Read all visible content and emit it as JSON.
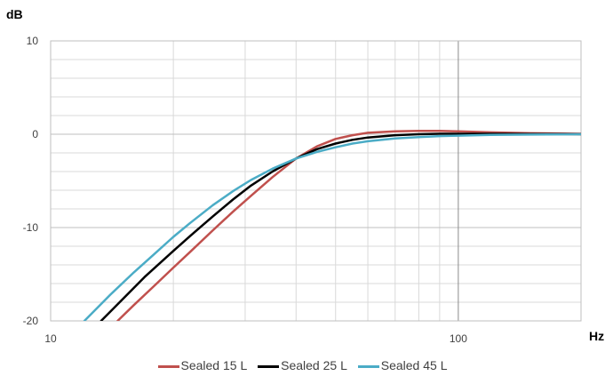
{
  "chart_data": {
    "type": "line",
    "title": "",
    "ylabel": "dB",
    "xlabel": "Hz",
    "xscale": "log",
    "xlim": [
      10,
      200
    ],
    "ylim": [
      -20,
      10
    ],
    "x_ticks": [
      {
        "value": 10,
        "label": "10"
      },
      {
        "value": 100,
        "label": "100"
      }
    ],
    "y_ticks": [
      {
        "value": 10,
        "label": "10"
      },
      {
        "value": 0,
        "label": "0"
      },
      {
        "value": -10,
        "label": "-10"
      },
      {
        "value": -20,
        "label": "-20"
      }
    ],
    "grid": true,
    "legend": "bottom",
    "series": [
      {
        "name": "Sealed 15 L",
        "color": "#c0504d",
        "x": [
          14.6,
          16,
          18,
          20,
          22,
          25,
          28,
          31,
          35,
          40,
          45,
          50,
          55,
          60,
          70,
          80,
          90,
          100,
          120,
          150,
          200
        ],
        "y": [
          -20,
          -18.3,
          -16.2,
          -14.3,
          -12.6,
          -10.3,
          -8.3,
          -6.6,
          -4.6,
          -2.6,
          -1.3,
          -0.5,
          -0.1,
          0.15,
          0.3,
          0.35,
          0.35,
          0.3,
          0.2,
          0.1,
          0.05
        ]
      },
      {
        "name": "Sealed 25 L",
        "color": "#000000",
        "x": [
          13.3,
          15,
          17,
          20,
          22,
          25,
          28,
          31,
          35,
          40,
          45,
          50,
          55,
          60,
          70,
          80,
          90,
          100,
          120,
          150,
          200
        ],
        "y": [
          -20,
          -17.7,
          -15.3,
          -12.5,
          -10.9,
          -8.8,
          -7.0,
          -5.5,
          -4.0,
          -2.6,
          -1.6,
          -1.0,
          -0.6,
          -0.35,
          -0.1,
          0.0,
          0.05,
          0.05,
          0.05,
          0.02,
          0.0
        ]
      },
      {
        "name": "Sealed 45 L",
        "color": "#4bacc6",
        "x": [
          12.1,
          14,
          16,
          18,
          20,
          22,
          25,
          28,
          31,
          35,
          40,
          45,
          50,
          55,
          60,
          70,
          80,
          90,
          100,
          120,
          150,
          200
        ],
        "y": [
          -20,
          -17.2,
          -14.8,
          -12.8,
          -11.0,
          -9.5,
          -7.6,
          -6.1,
          -4.9,
          -3.7,
          -2.6,
          -1.9,
          -1.4,
          -1.0,
          -0.75,
          -0.45,
          -0.3,
          -0.2,
          -0.15,
          -0.08,
          -0.04,
          0.0
        ]
      }
    ]
  }
}
